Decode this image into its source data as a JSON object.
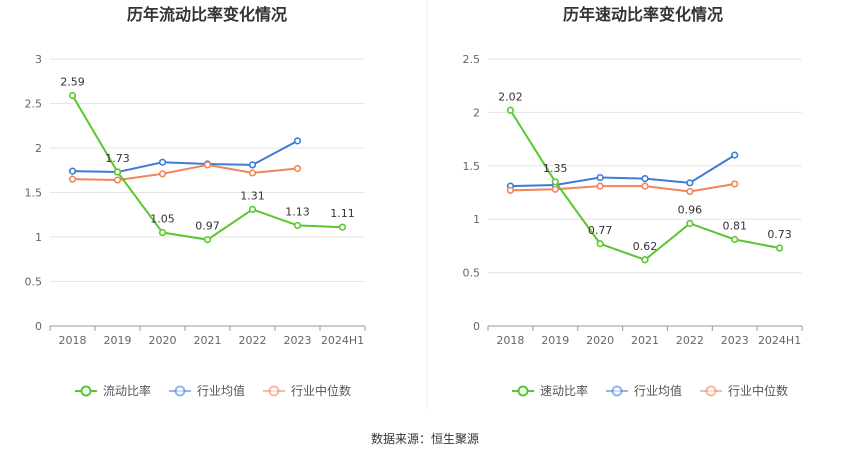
{
  "source_note": "数据来源：恒生聚源",
  "colors": {
    "green": "#5ac72e",
    "blue": "#3e7bd8",
    "orange": "#f0845a"
  },
  "chart_data": [
    {
      "type": "line",
      "title": "历年流动比率变化情况",
      "categories": [
        "2018",
        "2019",
        "2020",
        "2021",
        "2022",
        "2023",
        "2024H1"
      ],
      "ylim": [
        0,
        3
      ],
      "yticks": [
        "0",
        "0.5",
        "1",
        "1.5",
        "2",
        "2.5",
        "3"
      ],
      "grid": true,
      "legend_position": "bottom",
      "series": [
        {
          "name": "流动比率",
          "color": "#5ac72e",
          "labeled": true,
          "values": [
            2.59,
            1.73,
            1.05,
            0.97,
            1.31,
            1.13,
            1.11
          ],
          "labels": [
            "2.59",
            "1.73",
            "1.05",
            "0.97",
            "1.31",
            "1.13",
            "1.11"
          ]
        },
        {
          "name": "行业均值",
          "color": "#3e7bd8",
          "labeled": false,
          "values": [
            1.74,
            1.73,
            1.84,
            1.82,
            1.81,
            2.08,
            null
          ]
        },
        {
          "name": "行业中位数",
          "color": "#f0845a",
          "labeled": false,
          "values": [
            1.65,
            1.64,
            1.71,
            1.81,
            1.72,
            1.77,
            null
          ]
        }
      ]
    },
    {
      "type": "line",
      "title": "历年速动比率变化情况",
      "categories": [
        "2018",
        "2019",
        "2020",
        "2021",
        "2022",
        "2023",
        "2024H1"
      ],
      "ylim": [
        0,
        2.5
      ],
      "yticks": [
        "0",
        "0.5",
        "1",
        "1.5",
        "2",
        "2.5"
      ],
      "grid": true,
      "legend_position": "bottom",
      "series": [
        {
          "name": "速动比率",
          "color": "#5ac72e",
          "labeled": true,
          "values": [
            2.02,
            1.35,
            0.77,
            0.62,
            0.96,
            0.81,
            0.73
          ],
          "labels": [
            "2.02",
            "1.35",
            "0.77",
            "0.62",
            "0.96",
            "0.81",
            "0.73"
          ]
        },
        {
          "name": "行业均值",
          "color": "#3e7bd8",
          "labeled": false,
          "values": [
            1.31,
            1.32,
            1.39,
            1.38,
            1.34,
            1.6,
            null
          ]
        },
        {
          "name": "行业中位数",
          "color": "#f0845a",
          "labeled": false,
          "values": [
            1.27,
            1.28,
            1.31,
            1.31,
            1.26,
            1.33,
            null
          ]
        }
      ]
    }
  ]
}
